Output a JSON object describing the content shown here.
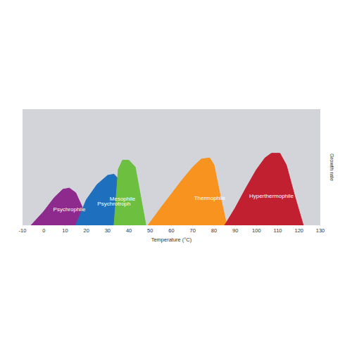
{
  "chart_data": {
    "type": "area",
    "x_label": "Temperature (°C)",
    "y_label": "Growth rate",
    "xlim": [
      -10,
      130
    ],
    "xticks": [
      -10,
      0,
      10,
      20,
      30,
      40,
      50,
      60,
      70,
      80,
      90,
      100,
      110,
      120,
      130
    ],
    "ylim": [
      0,
      100
    ],
    "tick_labels": "x",
    "grid": false,
    "series": [
      {
        "name": "Psychrophile",
        "color": "#8e2a8e",
        "x": [
          -6,
          0,
          5,
          9,
          12,
          15,
          18,
          20
        ],
        "values": [
          0,
          12,
          24,
          31,
          32,
          28,
          16,
          0
        ]
      },
      {
        "name": "Psychrotroph",
        "color": "#1f6fbf",
        "x": [
          15,
          20,
          25,
          30,
          33,
          36,
          38,
          40
        ],
        "values": [
          0,
          22,
          35,
          43,
          44,
          38,
          20,
          0
        ]
      },
      {
        "name": "Mesophile",
        "color": "#6cbf3f",
        "x": [
          33,
          35,
          37,
          40,
          43,
          46,
          48
        ],
        "values": [
          0,
          48,
          56,
          56,
          50,
          20,
          0
        ]
      },
      {
        "name": "Thermophile",
        "color": "#f7931e",
        "x": [
          49,
          55,
          60,
          65,
          70,
          74,
          78,
          80,
          83,
          86
        ],
        "values": [
          0,
          15,
          27,
          39,
          50,
          57,
          58,
          52,
          25,
          0
        ]
      },
      {
        "name": "Hyperthermophile",
        "color": "#c0202f",
        "x": [
          85,
          90,
          95,
          100,
          104,
          107,
          111,
          114,
          118,
          122
        ],
        "values": [
          0,
          15,
          32,
          48,
          58,
          62,
          62,
          52,
          25,
          0
        ]
      }
    ]
  }
}
